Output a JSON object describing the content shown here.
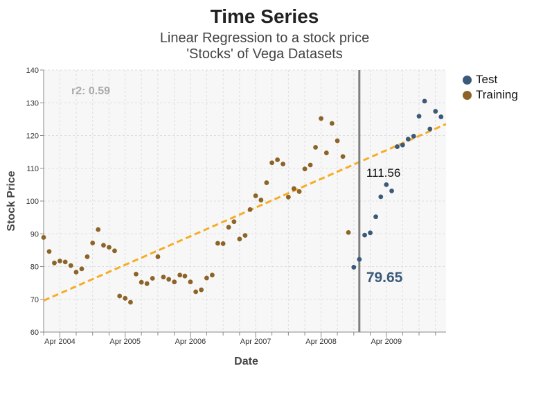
{
  "title": "Time Series",
  "subtitle_line1": "Linear Regression to a stock price",
  "subtitle_line2": "'Stocks' of Vega Datasets",
  "r2_label": "r2: 0.59",
  "split_label_upper": "111.56",
  "split_label_lower": "79.65",
  "colors": {
    "test": "#3b5a7a",
    "training": "#8c6428",
    "regression": "#f5ad24",
    "split_line": "#7f7f7f",
    "r2_text": "#aaaaaa",
    "grid": "#dddddd",
    "plot_bg": "#f7f7f7"
  },
  "legend": [
    {
      "label": "Test",
      "color": "#3b5a7a"
    },
    {
      "label": "Training",
      "color": "#8c6428"
    }
  ],
  "chart_data": {
    "type": "scatter",
    "title": "Time Series",
    "xlabel": "Date",
    "ylabel": "Stock Price",
    "ylim": [
      60,
      140
    ],
    "xlim": [
      "2004-01-01",
      "2010-03-01"
    ],
    "y_ticks": [
      60,
      70,
      80,
      90,
      100,
      110,
      120,
      130,
      140
    ],
    "x_ticks": [
      {
        "date": "2004-04-01",
        "label": "Apr 2004"
      },
      {
        "date": "2005-04-01",
        "label": "Apr 2005"
      },
      {
        "date": "2006-04-01",
        "label": "Apr 2006"
      },
      {
        "date": "2007-04-01",
        "label": "Apr 2007"
      },
      {
        "date": "2008-04-01",
        "label": "Apr 2008"
      },
      {
        "date": "2009-04-01",
        "label": "Apr 2009"
      }
    ],
    "minor_x_ticks": [
      "2004-01-01",
      "2004-07-01",
      "2004-10-01",
      "2005-01-01",
      "2005-07-01",
      "2005-10-01",
      "2006-01-01",
      "2006-07-01",
      "2006-10-01",
      "2007-01-01",
      "2007-07-01",
      "2007-10-01",
      "2008-01-01",
      "2008-07-01",
      "2008-10-01",
      "2009-01-01",
      "2009-07-01",
      "2009-10-01",
      "2010-01-01"
    ],
    "grid": true,
    "legend_position": "top-right",
    "split_date": "2008-11-01",
    "regression_line": {
      "x": [
        "2004-01-01",
        "2010-03-01"
      ],
      "y": [
        69.6,
        123.5
      ]
    },
    "series": [
      {
        "name": "Training",
        "color": "#8c6428",
        "points": [
          [
            "2004-01-01",
            88.9
          ],
          [
            "2004-02-01",
            84.6
          ],
          [
            "2004-03-01",
            81.1
          ],
          [
            "2004-04-01",
            81.7
          ],
          [
            "2004-05-01",
            81.4
          ],
          [
            "2004-06-01",
            80.3
          ],
          [
            "2004-07-01",
            78.3
          ],
          [
            "2004-08-01",
            79.3
          ],
          [
            "2004-09-01",
            83.0
          ],
          [
            "2004-10-01",
            87.2
          ],
          [
            "2004-11-01",
            91.3
          ],
          [
            "2004-12-01",
            86.5
          ],
          [
            "2005-01-01",
            85.9
          ],
          [
            "2005-02-01",
            84.8
          ],
          [
            "2005-03-01",
            71.0
          ],
          [
            "2005-04-01",
            70.3
          ],
          [
            "2005-05-01",
            69.1
          ],
          [
            "2005-06-01",
            77.7
          ],
          [
            "2005-07-01",
            75.2
          ],
          [
            "2005-08-01",
            74.8
          ],
          [
            "2005-09-01",
            76.4
          ],
          [
            "2005-10-01",
            83.0
          ],
          [
            "2005-11-01",
            76.8
          ],
          [
            "2005-12-01",
            76.1
          ],
          [
            "2006-01-01",
            75.3
          ],
          [
            "2006-02-01",
            77.4
          ],
          [
            "2006-03-01",
            77.1
          ],
          [
            "2006-04-01",
            75.3
          ],
          [
            "2006-05-01",
            72.3
          ],
          [
            "2006-06-01",
            72.9
          ],
          [
            "2006-07-01",
            76.5
          ],
          [
            "2006-08-01",
            77.4
          ],
          [
            "2006-09-01",
            87.1
          ],
          [
            "2006-10-01",
            87.0
          ],
          [
            "2006-11-01",
            92.0
          ],
          [
            "2006-12-01",
            93.7
          ],
          [
            "2007-01-01",
            88.4
          ],
          [
            "2007-02-01",
            89.5
          ],
          [
            "2007-03-01",
            97.4
          ],
          [
            "2007-04-01",
            101.6
          ],
          [
            "2007-05-01",
            100.3
          ],
          [
            "2007-06-01",
            105.6
          ],
          [
            "2007-07-01",
            111.7
          ],
          [
            "2007-08-01",
            112.6
          ],
          [
            "2007-09-01",
            111.3
          ],
          [
            "2007-10-01",
            101.2
          ],
          [
            "2007-11-01",
            103.8
          ],
          [
            "2007-12-01",
            102.9
          ],
          [
            "2008-01-01",
            109.8
          ],
          [
            "2008-02-01",
            111.0
          ],
          [
            "2008-03-01",
            116.4
          ],
          [
            "2008-04-01",
            125.2
          ],
          [
            "2008-05-01",
            114.7
          ],
          [
            "2008-06-01",
            123.7
          ],
          [
            "2008-07-01",
            118.4
          ],
          [
            "2008-08-01",
            113.6
          ],
          [
            "2008-09-01",
            90.4
          ]
        ]
      },
      {
        "name": "Test",
        "color": "#3b5a7a",
        "points": [
          [
            "2008-10-01",
            79.8
          ],
          [
            "2008-11-01",
            82.2
          ],
          [
            "2008-12-01",
            89.6
          ],
          [
            "2009-01-01",
            90.3
          ],
          [
            "2009-02-01",
            95.2
          ],
          [
            "2009-03-01",
            101.3
          ],
          [
            "2009-04-01",
            105.0
          ],
          [
            "2009-05-01",
            103.1
          ],
          [
            "2009-06-01",
            116.6
          ],
          [
            "2009-07-01",
            117.1
          ],
          [
            "2009-08-01",
            118.9
          ],
          [
            "2009-09-01",
            119.8
          ],
          [
            "2009-10-01",
            125.9
          ],
          [
            "2009-11-01",
            130.5
          ],
          [
            "2009-12-01",
            122.0
          ],
          [
            "2010-01-01",
            127.4
          ],
          [
            "2010-02-01",
            125.7
          ]
        ]
      }
    ]
  }
}
